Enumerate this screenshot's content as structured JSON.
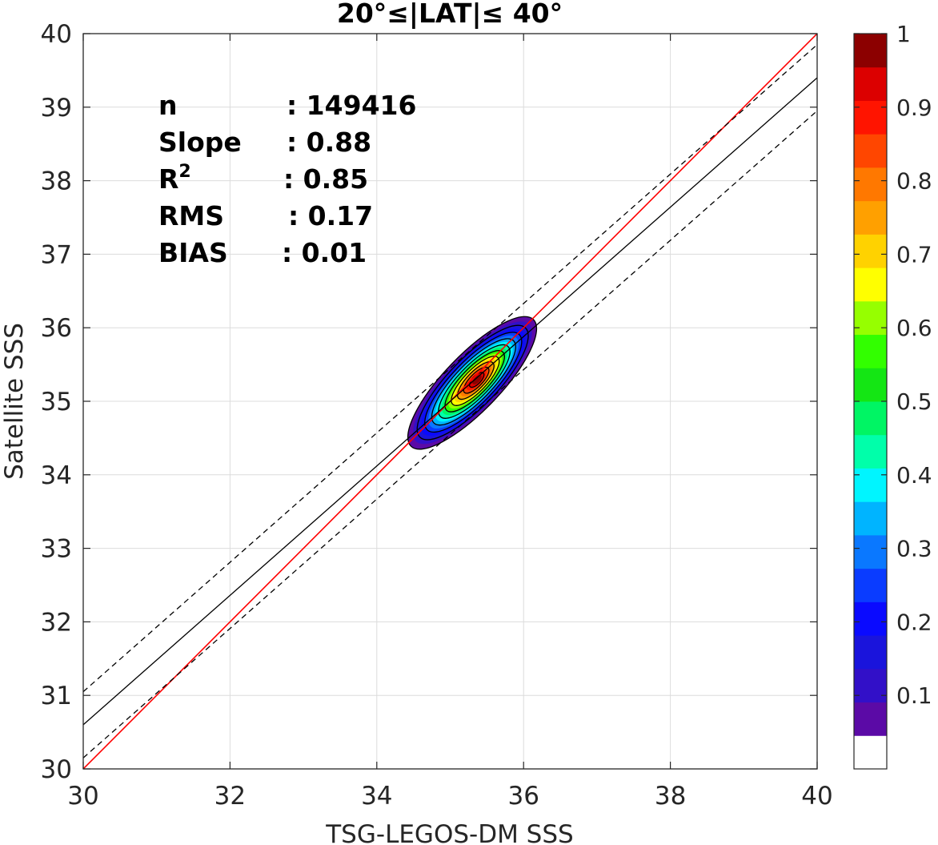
{
  "chart_data": {
    "type": "contour",
    "title": "20°≤|LAT|≤ 40°",
    "xlabel": "TSG-LEGOS-DM SSS",
    "ylabel": "Satellite SSS",
    "xlim": [
      30,
      40
    ],
    "ylim": [
      30,
      40
    ],
    "xticks": [
      "30",
      "32",
      "34",
      "36",
      "38",
      "40"
    ],
    "yticks": [
      "30",
      "31",
      "32",
      "33",
      "34",
      "35",
      "36",
      "37",
      "38",
      "39",
      "40"
    ],
    "grid": true,
    "stats": [
      {
        "label": "n",
        "value": ": 149416"
      },
      {
        "label": "Slope",
        "value": ": 0.88"
      },
      {
        "label": "R",
        "sup": "2",
        "value": ": 0.85"
      },
      {
        "label": "RMS",
        "value": ": 0.17"
      },
      {
        "label": "BIAS",
        "value": ": 0.01"
      }
    ],
    "lines": [
      {
        "kind": "identity",
        "color": "#ff0000",
        "x": [
          30,
          40
        ],
        "y": [
          30,
          40
        ]
      },
      {
        "kind": "fit",
        "color": "#000000",
        "x": [
          30,
          40
        ],
        "y": [
          30.6,
          39.4
        ]
      },
      {
        "kind": "fit-upper",
        "color": "#000000",
        "dash": true,
        "x": [
          30,
          40
        ],
        "y": [
          31.05,
          39.85
        ]
      },
      {
        "kind": "fit-lower",
        "color": "#000000",
        "dash": true,
        "x": [
          30,
          40
        ],
        "y": [
          30.15,
          38.95
        ]
      }
    ],
    "density": {
      "center": [
        35.3,
        35.25
      ],
      "angle_deg": 46,
      "outer_semi_axes": [
        1.2,
        0.38
      ],
      "inner_semi_axes": [
        0.08,
        0.04
      ],
      "levels": [
        0.05,
        0.1,
        0.2,
        0.3,
        0.4,
        0.5,
        0.6,
        0.7,
        0.8,
        0.9
      ]
    },
    "colorbar": {
      "ticks": [
        "0.1",
        "0.2",
        "0.3",
        "0.4",
        "0.5",
        "0.6",
        "0.7",
        "0.8",
        "0.9",
        "1"
      ],
      "range": [
        0,
        1
      ],
      "colors": [
        "#ffffff",
        "#5b0aa6",
        "#3210c8",
        "#1a14dc",
        "#0a0aff",
        "#0a3cff",
        "#0a78ff",
        "#00b4ff",
        "#00f5ff",
        "#00ffaa",
        "#00f564",
        "#14e614",
        "#32ff00",
        "#96ff00",
        "#ffff00",
        "#ffd200",
        "#ffa000",
        "#ff7800",
        "#ff4600",
        "#ff1400",
        "#dc0000",
        "#8c0000"
      ]
    }
  }
}
